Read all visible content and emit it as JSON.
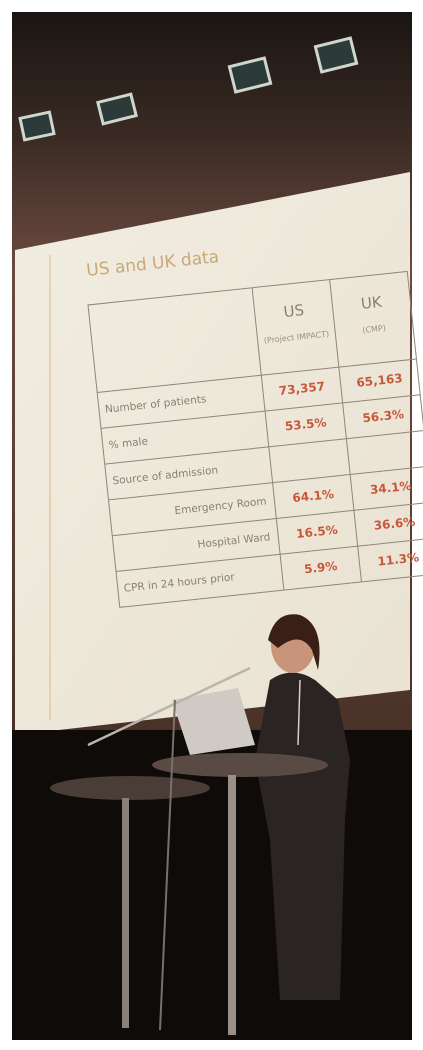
{
  "slide": {
    "title": "US and UK data",
    "table": {
      "columns": [
        {
          "name": "US",
          "note": "(Project IMPACT)"
        },
        {
          "name": "UK",
          "note": "(CMP)"
        }
      ],
      "rows": [
        {
          "label": "Number of patients",
          "values": [
            "73,357",
            "65,163"
          ]
        },
        {
          "label": "% male",
          "values": [
            "53.5%",
            "56.3%"
          ]
        },
        {
          "label": "Source of admission"
        },
        {
          "label": "Emergency Room",
          "values": [
            "64.1%",
            "34.1%"
          ],
          "indent": true
        },
        {
          "label": "Hospital Ward",
          "values": [
            "16.5%",
            "36.6%"
          ],
          "indent": true
        },
        {
          "label": "CPR in 24 hours prior",
          "values": [
            "5.9%",
            "11.3%"
          ]
        }
      ]
    }
  }
}
